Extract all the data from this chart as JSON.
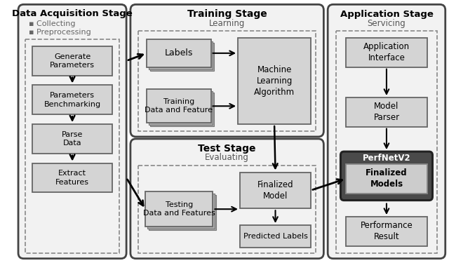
{
  "bg_color": "#ffffff",
  "stage1_title": "Data Acquisition Stage",
  "stage1_bullets": [
    "Collecting",
    "Preprocessing"
  ],
  "stage1_boxes": [
    "Generate\nParameters",
    "Parameters\nBenchmarking",
    "Parse\nData",
    "Extract\nFeatures"
  ],
  "stage2_title": "Training Stage",
  "stage2_subtitle": "Learning",
  "stage2_label_box": "Labels",
  "stage2_training_box": "Training\nData and Feature",
  "stage2_ml_box": "Machine\nLearning\nAlgorithm",
  "stage3_title": "Test Stage",
  "stage3_subtitle": "Evaluating",
  "stage3_test_box": "Testing\nData and Features",
  "stage3_fm_box": "Finalized\nModel",
  "stage3_pl_box": "Predicted Labels",
  "stage4_title": "Application Stage",
  "stage4_subtitle": "Servicing",
  "stage4_boxes": [
    "Application\nInterface",
    "Model\nParser",
    "Finalized\nModels",
    "Performance\nResult"
  ],
  "perfnetv2_label": "PerfNetV2",
  "box_fc": "#d4d4d4",
  "box_ec": "#666666",
  "stage_fc": "#f2f2f2",
  "stage_ec": "#444444",
  "dark_fc": "#4a4a4a",
  "dark_ec": "#222222"
}
